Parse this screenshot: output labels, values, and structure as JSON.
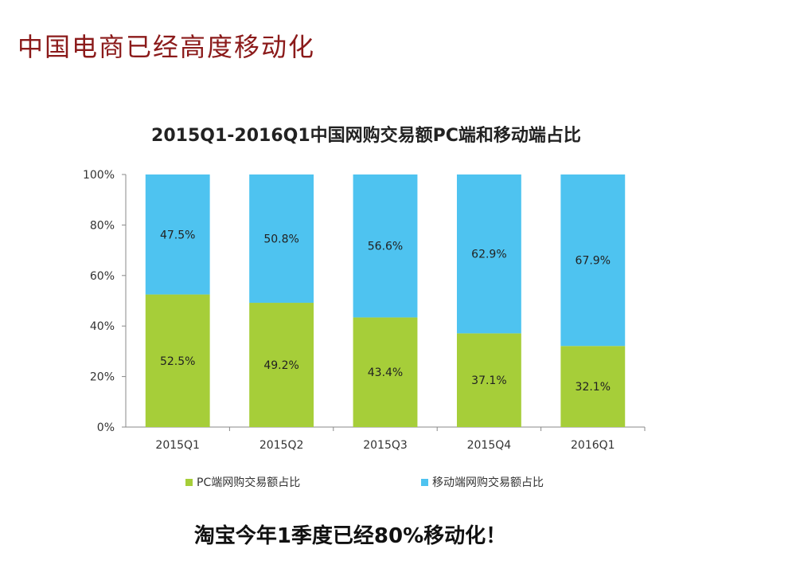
{
  "page": {
    "title": "中国电商已经高度移动化",
    "footer_note": "淘宝今年1季度已经80%移动化！"
  },
  "colors": {
    "title": "#8b1a1a",
    "pc": "#a6ce39",
    "mobile": "#4ec3f0",
    "axis": "#888888"
  },
  "chart_data": {
    "type": "bar",
    "stacked": true,
    "title": "2015Q1-2016Q1中国网购交易额PC端和移动端占比",
    "categories": [
      "2015Q1",
      "2015Q2",
      "2015Q3",
      "2015Q4",
      "2016Q1"
    ],
    "series": [
      {
        "name": "PC端网购交易额占比",
        "values": [
          52.5,
          49.2,
          43.4,
          37.1,
          32.1
        ],
        "labels": [
          "52.5%",
          "49.2%",
          "43.4%",
          "37.1%",
          "32.1%"
        ]
      },
      {
        "name": "移动端网购交易额占比",
        "values": [
          47.5,
          50.8,
          56.6,
          62.9,
          67.9
        ],
        "labels": [
          "47.5%",
          "50.8%",
          "56.6%",
          "62.9%",
          "67.9%"
        ]
      }
    ],
    "ylim": [
      0,
      100
    ],
    "yticks": [
      "0%",
      "20%",
      "40%",
      "60%",
      "80%",
      "100%"
    ],
    "legend": "bottom",
    "grid": false
  }
}
